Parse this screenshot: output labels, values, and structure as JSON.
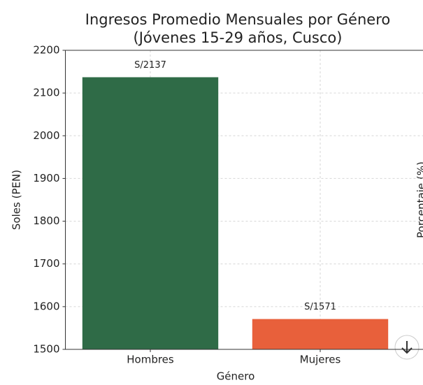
{
  "chart_data": {
    "type": "bar",
    "title": "Ingresos Promedio Mensuales por Género",
    "subtitle": "(Jóvenes 15-29 años, Cusco)",
    "x_label": "Género",
    "y_label": "Soles (PEN)",
    "y2_label": "Porcentaje (%)",
    "categories": [
      "Hombres",
      "Mujeres"
    ],
    "values": [
      2137,
      1571
    ],
    "value_labels": [
      "S/2137",
      "S/1571"
    ],
    "colors": [
      "#2f6b47",
      "#e8603b"
    ],
    "ylim": [
      1500,
      2200
    ],
    "yticks": [
      1500,
      1600,
      1700,
      1800,
      1900,
      2000,
      2100,
      2200
    ],
    "grid": true
  }
}
